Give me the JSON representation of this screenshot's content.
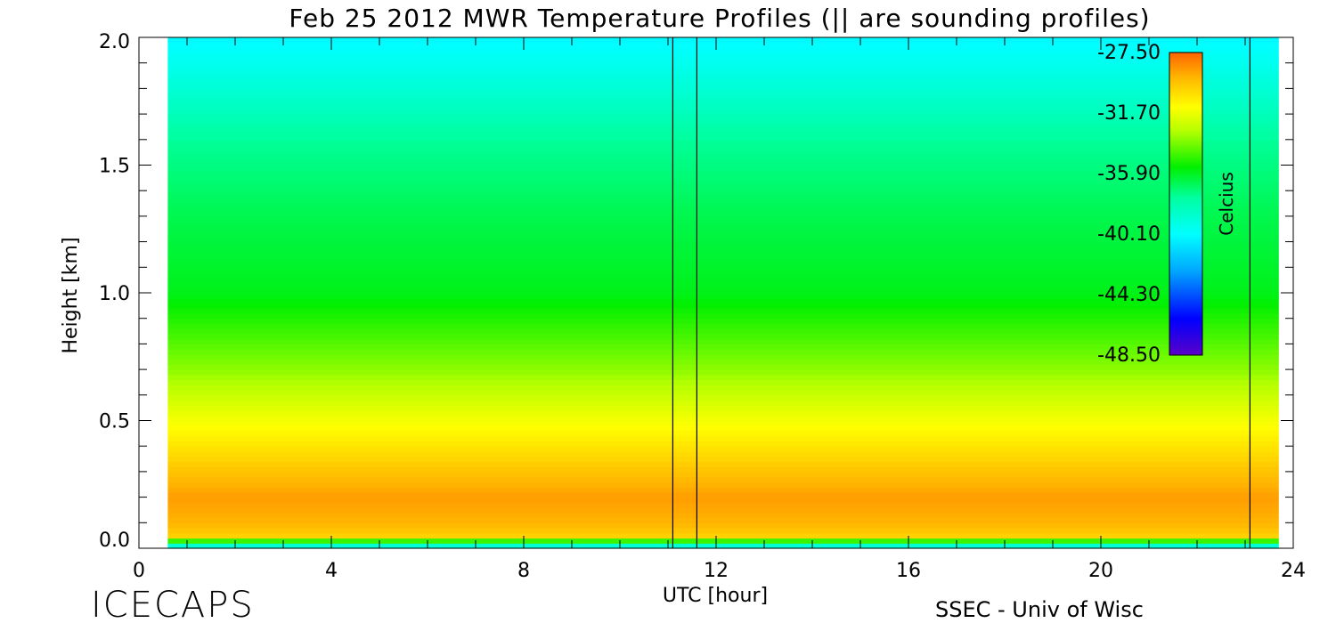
{
  "chart_data": {
    "type": "heatmap",
    "title": "Feb 25 2012 MWR Temperature Profiles (|| are sounding profiles)",
    "xlabel": "UTC [hour]",
    "ylabel": "Height [km]",
    "xlim": [
      0,
      24
    ],
    "ylim": [
      0,
      2.0
    ],
    "x_ticks": [
      "0",
      "4",
      "8",
      "12",
      "16",
      "20",
      "24"
    ],
    "y_ticks": [
      "0.0",
      "0.5",
      "1.0",
      "1.5",
      "2.0"
    ],
    "data_time_range": [
      0.6,
      23.7
    ],
    "sounding_times": [
      11.1,
      11.6,
      23.1
    ],
    "colorbar": {
      "label": "Celcius",
      "min": -48.5,
      "max": -27.5,
      "ticks": [
        "-27.50",
        "-31.70",
        "-35.90",
        "-40.10",
        "-44.30",
        "-48.50"
      ]
    },
    "profile": {
      "heights": [
        0.0,
        0.02,
        0.05,
        0.1,
        0.2,
        0.3,
        0.5,
        0.7,
        1.0,
        1.3,
        1.6,
        1.8,
        2.0
      ],
      "temperatures": [
        -41.0,
        -37.0,
        -30.0,
        -29.2,
        -28.7,
        -29.6,
        -31.5,
        -33.5,
        -35.8,
        -36.5,
        -37.5,
        -39.0,
        -40.3
      ]
    }
  },
  "footer": {
    "brand": "ICECAPS",
    "credit": "SSEC - Univ of Wisc"
  }
}
